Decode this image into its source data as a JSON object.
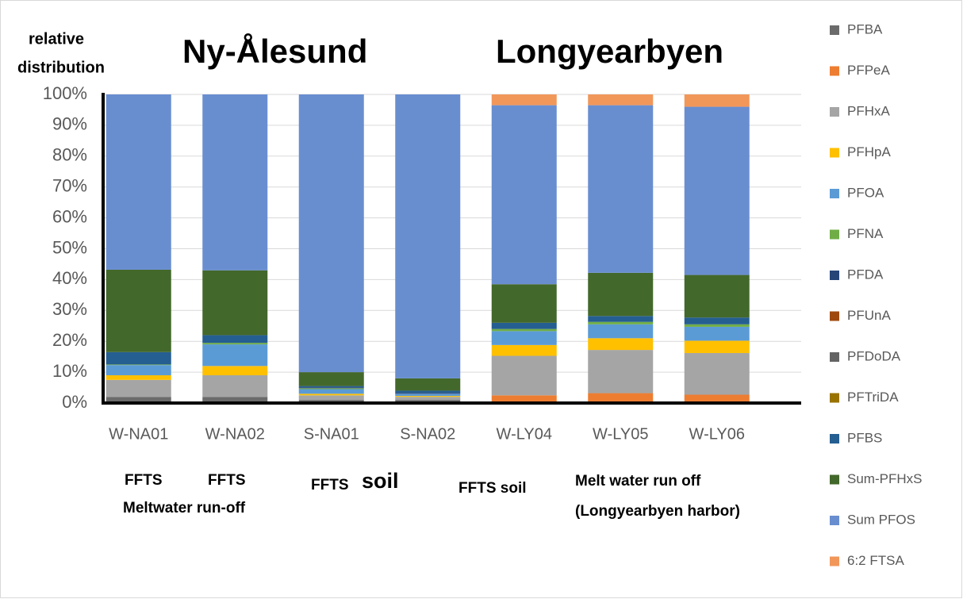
{
  "chart_data": {
    "type": "stacked_bar",
    "ylabel_lines": [
      "relative",
      "distribution"
    ],
    "annotations": [
      "Ny-Ålesund",
      "Longyearbyen",
      "FFTS",
      "FFTS",
      "Meltwater  run-off",
      "FFTS",
      "soil",
      "FFTS soil",
      "Melt water run off",
      "(Longyearbyen harbor)"
    ],
    "categories": [
      "W-NA01",
      "W-NA02",
      "S-NA01",
      "S-NA02",
      "W-LY04",
      "W-LY05",
      "W-LY06"
    ],
    "ylim": [
      0,
      100
    ],
    "yticks": [
      {
        "value": 0,
        "label": "0%"
      },
      {
        "value": 10,
        "label": "10%"
      },
      {
        "value": 20,
        "label": "20%"
      },
      {
        "value": 30,
        "label": "30%"
      },
      {
        "value": 40,
        "label": "40%"
      },
      {
        "value": 50,
        "label": "50%"
      },
      {
        "value": 60,
        "label": "60%"
      },
      {
        "value": 70,
        "label": "70%"
      },
      {
        "value": 80,
        "label": "80%"
      },
      {
        "value": 90,
        "label": "90%"
      },
      {
        "value": 100,
        "label": "100%"
      }
    ],
    "grid": true,
    "legend": "right",
    "series": [
      {
        "name": "PFBA",
        "color": "#6b6b6b",
        "values": [
          2,
          2,
          1,
          1,
          0.5,
          0.5,
          0.5
        ]
      },
      {
        "name": "PFPeA",
        "color": "#ed7d31",
        "values": [
          0,
          0,
          0,
          0,
          2,
          2.7,
          2.2
        ]
      },
      {
        "name": "PFHxA",
        "color": "#a5a5a5",
        "values": [
          5.5,
          7,
          1.5,
          1,
          12.8,
          14,
          13.5
        ]
      },
      {
        "name": "PFHpA",
        "color": "#ffc000",
        "values": [
          1.5,
          3,
          0.5,
          0.3,
          3.5,
          3.8,
          4
        ]
      },
      {
        "name": "PFOA",
        "color": "#5b9bd5",
        "values": [
          3.3,
          7,
          1.5,
          0.7,
          4.5,
          4.5,
          4.5
        ]
      },
      {
        "name": "PFNA",
        "color": "#70ad47",
        "values": [
          0.2,
          0.5,
          0.3,
          0,
          0.7,
          0.8,
          0.8
        ]
      },
      {
        "name": "PFDA",
        "color": "#264478",
        "values": [
          0,
          0,
          0.3,
          0.3,
          0,
          0,
          0
        ]
      },
      {
        "name": "PFUnA",
        "color": "#9e480e",
        "values": [
          0,
          0,
          0,
          0,
          0,
          0,
          0
        ]
      },
      {
        "name": "PFDoDA",
        "color": "#636363",
        "values": [
          0,
          0,
          0,
          0,
          0,
          0,
          0
        ]
      },
      {
        "name": "PFTriDA",
        "color": "#997300",
        "values": [
          0,
          0,
          0,
          0,
          0,
          0,
          0
        ]
      },
      {
        "name": "PFBS",
        "color": "#255e91",
        "values": [
          4,
          2.5,
          0.4,
          0.7,
          2,
          1.9,
          2.2
        ]
      },
      {
        "name": "Sum-PFHxS",
        "color": "#43682b",
        "values": [
          26.7,
          21,
          4.5,
          4,
          12.5,
          14,
          13.8
        ]
      },
      {
        "name": "Sum PFOS",
        "color": "#698ed0",
        "values": [
          56.8,
          57,
          90,
          92,
          58,
          54.3,
          54.5
        ]
      },
      {
        "name": "6:2 FTSA",
        "color": "#f1975a",
        "values": [
          0,
          0,
          0,
          0,
          3.5,
          3.5,
          4
        ]
      }
    ]
  }
}
